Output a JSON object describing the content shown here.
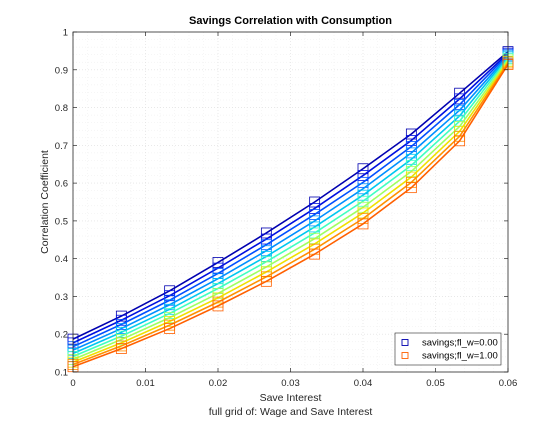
{
  "chart_data": {
    "type": "line",
    "title": "Savings Correlation with Consumption",
    "xlabel": "Save Interest",
    "xlabel2": "full grid of: Wage and Save Interest",
    "ylabel": "Correlation Coefficient",
    "xlim": [
      0,
      0.06
    ],
    "ylim": [
      0.1,
      1
    ],
    "xticks": [
      "0",
      "0.01",
      "0.02",
      "0.03",
      "0.04",
      "0.05",
      "0.06"
    ],
    "yticks": [
      "0.1",
      "0.2",
      "0.3",
      "0.4",
      "0.5",
      "0.6",
      "0.7",
      "0.8",
      "0.9",
      "1"
    ],
    "grid": true,
    "minor_grid": true,
    "legend_position": "bottom-right",
    "marker": "square",
    "x": [
      0,
      0.00667,
      0.01333,
      0.02,
      0.02667,
      0.03333,
      0.04,
      0.04667,
      0.05333,
      0.06
    ],
    "series": [
      {
        "name": "savings;fl_w=0.00",
        "color": "#0000b0",
        "values": [
          0.187,
          0.248,
          0.315,
          0.39,
          0.468,
          0.55,
          0.638,
          0.73,
          0.838,
          0.948
        ],
        "legend": true
      },
      {
        "color": "#0010e0",
        "values": [
          0.177,
          0.237,
          0.302,
          0.375,
          0.452,
          0.533,
          0.62,
          0.713,
          0.823,
          0.944
        ],
        "legend": false
      },
      {
        "color": "#0050ff",
        "values": [
          0.167,
          0.226,
          0.29,
          0.361,
          0.437,
          0.517,
          0.602,
          0.697,
          0.808,
          0.941
        ],
        "legend": false
      },
      {
        "color": "#0090ff",
        "values": [
          0.158,
          0.215,
          0.278,
          0.347,
          0.421,
          0.5,
          0.585,
          0.68,
          0.793,
          0.937
        ],
        "legend": false
      },
      {
        "color": "#00c8f0",
        "values": [
          0.149,
          0.205,
          0.266,
          0.334,
          0.406,
          0.484,
          0.568,
          0.663,
          0.778,
          0.934
        ],
        "legend": false
      },
      {
        "color": "#40ffc0",
        "values": [
          0.141,
          0.195,
          0.255,
          0.321,
          0.392,
          0.468,
          0.552,
          0.647,
          0.764,
          0.93
        ],
        "legend": false
      },
      {
        "color": "#a0ff60",
        "values": [
          0.133,
          0.186,
          0.244,
          0.308,
          0.378,
          0.453,
          0.536,
          0.631,
          0.75,
          0.926
        ],
        "legend": false
      },
      {
        "color": "#f0e000",
        "values": [
          0.126,
          0.177,
          0.234,
          0.296,
          0.365,
          0.439,
          0.521,
          0.616,
          0.737,
          0.922
        ],
        "legend": false
      },
      {
        "color": "#ff9000",
        "values": [
          0.12,
          0.169,
          0.224,
          0.285,
          0.352,
          0.425,
          0.506,
          0.602,
          0.724,
          0.918
        ],
        "legend": false
      },
      {
        "name": "savings;fl_w=1.00",
        "color": "#ff6000",
        "values": [
          0.114,
          0.162,
          0.215,
          0.275,
          0.34,
          0.412,
          0.492,
          0.588,
          0.712,
          0.914
        ],
        "legend": true
      }
    ]
  }
}
